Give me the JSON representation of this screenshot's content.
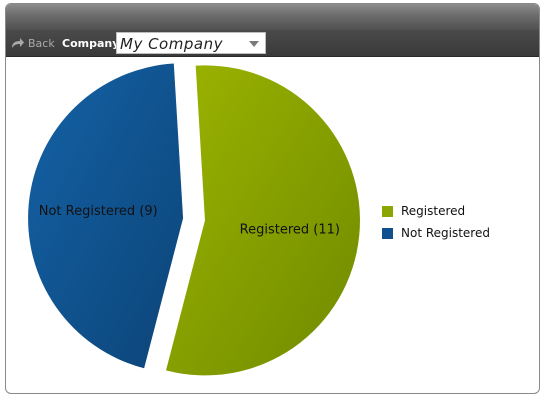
{
  "toolbar": {
    "back_label": "Back",
    "company_label": "Company",
    "company_select_value": "My Company"
  },
  "colors": {
    "registered": "#8ba600",
    "not_registered": "#0f5190"
  },
  "chart_data": {
    "type": "pie",
    "categories": [
      "Registered",
      "Not Registered"
    ],
    "values": [
      11,
      9
    ],
    "slice_labels": [
      "Registered (11)",
      "Not Registered (9)"
    ],
    "legend": [
      "Registered",
      "Not Registered"
    ],
    "legend_position": "right",
    "exploded": "Not Registered"
  }
}
